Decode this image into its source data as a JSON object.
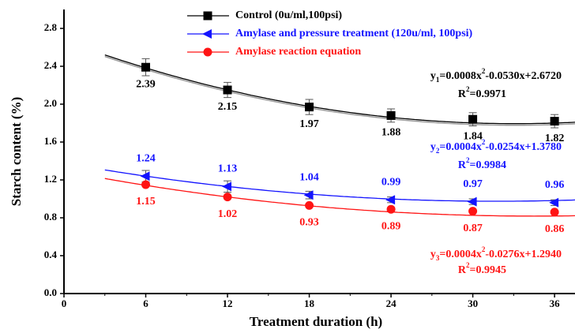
{
  "chart_data": {
    "type": "scatter",
    "x_label": "Treatment duration (h)",
    "y_label": "Starch content (%)",
    "x": [
      6,
      12,
      18,
      24,
      30,
      36
    ],
    "xlim": [
      0,
      37.5
    ],
    "ylim": [
      0,
      3.0
    ],
    "xticks": [
      0,
      6,
      12,
      18,
      24,
      30,
      36
    ],
    "yticks": [
      {
        "value": 0,
        "label": "0.0"
      },
      0.4,
      0.8,
      1.2,
      1.6,
      {
        "value": 2,
        "label": "2.0"
      },
      2.4,
      2.8
    ],
    "fit_start": 3,
    "series": [
      {
        "name": "Control (0u/ml,100psi)",
        "color": "#000000",
        "marker": "square",
        "label_position": "below",
        "values": [
          2.39,
          2.15,
          1.97,
          1.88,
          1.84,
          1.82
        ],
        "errors": [
          0.09,
          0.08,
          0.08,
          0.07,
          0.07,
          0.07
        ],
        "fit": {
          "a": 0.0008,
          "b": -0.053,
          "c": 2.672,
          "equation": [
            "y",
            "1",
            "=0.0008x",
            "2",
            "-0.0530x+2.6720"
          ],
          "r2": [
            "R",
            "2",
            "=0.9971"
          ]
        }
      },
      {
        "name": "Amylase and pressure treatment (120u/ml, 100psi)",
        "color": "#1414ff",
        "marker": "triangle-left",
        "label_position": "above",
        "values": [
          1.24,
          1.13,
          1.04,
          0.99,
          0.97,
          0.96
        ],
        "errors": [
          0.06,
          0.06,
          0.04,
          0.03,
          0.03,
          0.03
        ],
        "fit": {
          "a": 0.0004,
          "b": -0.0254,
          "c": 1.378,
          "equation": [
            "y",
            "2",
            "=0.0004x",
            "2",
            "-0.0254x+1.3780"
          ],
          "r2": [
            "R",
            "2",
            "=0.9984"
          ]
        }
      },
      {
        "name": "Amylase reaction equation",
        "color": "#ff1414",
        "marker": "circle",
        "label_position": "below",
        "values": [
          1.15,
          1.02,
          0.93,
          0.89,
          0.87,
          0.86
        ],
        "fit": {
          "a": 0.0004,
          "b": -0.0276,
          "c": 1.294,
          "equation": [
            "y",
            "3",
            "=0.0004x",
            "2",
            "-0.0276x+1.2940"
          ],
          "r2": [
            "R",
            "2",
            "=0.9945"
          ]
        }
      }
    ]
  }
}
